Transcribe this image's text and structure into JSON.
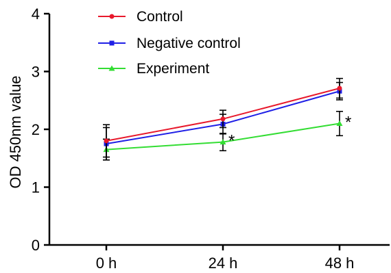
{
  "chart_data": {
    "type": "line",
    "title": "",
    "xlabel": "",
    "ylabel": "OD 450nm value",
    "categories": [
      "0 h",
      "24 h",
      "48 h"
    ],
    "ylim": [
      0,
      4
    ],
    "yticks": [
      0,
      1,
      2,
      3,
      4
    ],
    "grid": false,
    "legend_position": "top-left",
    "series": [
      {
        "name": "Control",
        "color": "#e8192c",
        "marker": "circle",
        "values": [
          1.8,
          2.18,
          2.71
        ],
        "errors": [
          0.28,
          0.15,
          0.17
        ]
      },
      {
        "name": "Negative control",
        "color": "#1f1fe6",
        "marker": "square",
        "values": [
          1.75,
          2.09,
          2.66
        ],
        "errors": [
          0.28,
          0.17,
          0.15
        ]
      },
      {
        "name": "Experiment",
        "color": "#33dd33",
        "marker": "triangle",
        "values": [
          1.65,
          1.78,
          2.1
        ],
        "errors": [
          0.18,
          0.15,
          0.21
        ]
      }
    ],
    "annotations": [
      {
        "category": "24 h",
        "text": "*"
      },
      {
        "category": "48 h",
        "text": "*"
      }
    ]
  }
}
